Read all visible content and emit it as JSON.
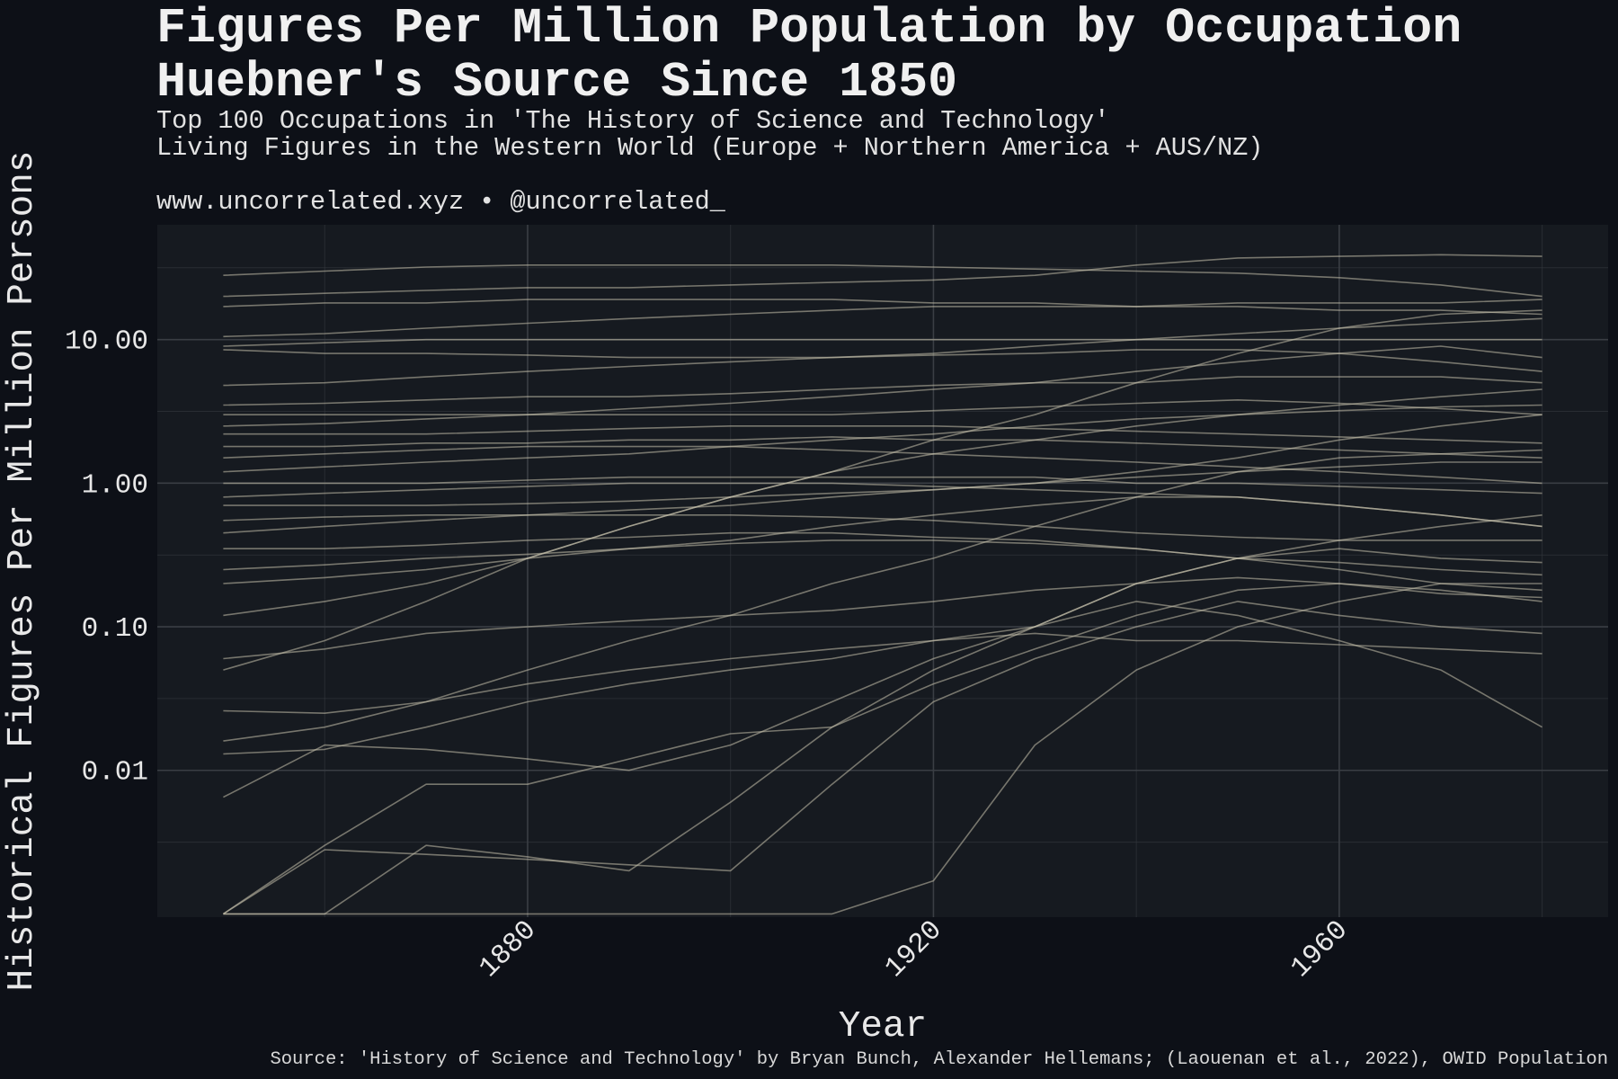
{
  "chart_data": {
    "type": "line",
    "title": [
      "Figures Per Million Population by Occupation",
      "Huebner's Source Since 1850"
    ],
    "subtitle": [
      "Top 100 Occupations in 'The History of Science and Technology'",
      "Living Figures in the Western World (Europe + Northern America + AUS/NZ)"
    ],
    "credit": "www.uncorrelated.xyz • @uncorrelated_",
    "caption": "Source: 'History of Science and Technology' by Bryan Bunch, Alexander Hellemans; (Laouenan et al., 2022), OWID Population",
    "xlabel": "Year",
    "ylabel": "Historical Figures Per Million Persons",
    "x_ticks": [
      "1880",
      "1920",
      "1960"
    ],
    "y_ticks": [
      "10.00",
      "1.00",
      "0.10",
      "0.01"
    ],
    "y_scale": "log10",
    "xlim": [
      1843.5,
      1986.5
    ],
    "ylim": [
      0.00095,
      63
    ],
    "grid": true,
    "legend": "none",
    "x": [
      1850,
      1860,
      1870,
      1880,
      1890,
      1900,
      1910,
      1920,
      1930,
      1940,
      1950,
      1960,
      1970,
      1980
    ],
    "series": [
      {
        "values": [
          28,
          30,
          32,
          33,
          33,
          33,
          33,
          32,
          31,
          30,
          29,
          27,
          24,
          20
        ]
      },
      {
        "values": [
          20,
          21,
          22,
          23,
          23,
          24,
          25,
          26,
          28,
          33,
          37,
          38,
          39,
          38
        ]
      },
      {
        "values": [
          17,
          18,
          18,
          19,
          19,
          19,
          19,
          18,
          18,
          17,
          17,
          16,
          16,
          15
        ]
      },
      {
        "values": [
          10.5,
          11,
          12,
          13,
          14,
          15,
          16,
          17,
          17,
          17,
          18,
          18,
          18,
          19
        ]
      },
      {
        "values": [
          9,
          9.5,
          10,
          10,
          10,
          10,
          10,
          10,
          10,
          10,
          10,
          10,
          10,
          10
        ]
      },
      {
        "values": [
          8.5,
          8,
          8,
          7.8,
          7.5,
          7.5,
          7.5,
          7.8,
          8,
          8.5,
          8.5,
          8,
          7,
          6
        ]
      },
      {
        "values": [
          4.8,
          5,
          5.5,
          6,
          6.5,
          7,
          7.5,
          8,
          9,
          10,
          11,
          12,
          13,
          14
        ]
      },
      {
        "values": [
          3.5,
          3.6,
          3.8,
          4,
          4,
          4.2,
          4.5,
          4.8,
          5,
          5,
          5.5,
          5.5,
          5.5,
          5
        ]
      },
      {
        "values": [
          3,
          3,
          3,
          3,
          3,
          3,
          3,
          3.2,
          3.4,
          3.6,
          3.8,
          3.6,
          3.3,
          3
        ]
      },
      {
        "values": [
          2.5,
          2.6,
          2.8,
          3,
          3.3,
          3.6,
          4,
          4.5,
          5,
          6,
          7,
          8,
          9,
          7.5
        ]
      },
      {
        "values": [
          2.2,
          2.2,
          2.2,
          2.3,
          2.4,
          2.5,
          2.5,
          2.5,
          2.4,
          2.3,
          2.2,
          2.1,
          2,
          1.9
        ]
      },
      {
        "values": [
          1.8,
          1.8,
          1.9,
          1.9,
          2,
          2,
          2.1,
          2,
          2,
          1.9,
          1.8,
          1.7,
          1.6,
          1.5
        ]
      },
      {
        "values": [
          1.5,
          1.6,
          1.7,
          1.8,
          1.8,
          1.8,
          1.7,
          1.6,
          1.5,
          1.4,
          1.3,
          1.2,
          1.1,
          1
        ]
      },
      {
        "values": [
          1.2,
          1.3,
          1.4,
          1.5,
          1.6,
          1.8,
          2,
          2.2,
          2.5,
          2.8,
          3,
          3.2,
          3.4,
          3.5
        ]
      },
      {
        "values": [
          1,
          1,
          1,
          1.05,
          1.1,
          1.1,
          1.1,
          1.1,
          1.1,
          1,
          1,
          0.95,
          0.9,
          0.85
        ]
      },
      {
        "values": [
          0.8,
          0.85,
          0.9,
          0.95,
          1,
          1,
          1,
          0.95,
          0.9,
          0.85,
          0.8,
          0.7,
          0.6,
          0.5
        ]
      },
      {
        "values": [
          0.7,
          0.7,
          0.7,
          0.72,
          0.75,
          0.8,
          0.85,
          0.9,
          1,
          1.1,
          1.2,
          1.3,
          1.4,
          1.4
        ]
      },
      {
        "values": [
          0.55,
          0.58,
          0.6,
          0.6,
          0.6,
          0.6,
          0.58,
          0.55,
          0.5,
          0.45,
          0.42,
          0.4,
          0.4,
          0.4
        ]
      },
      {
        "values": [
          0.45,
          0.5,
          0.55,
          0.6,
          0.65,
          0.7,
          0.8,
          0.9,
          1,
          1.2,
          1.5,
          2,
          2.5,
          3
        ]
      },
      {
        "values": [
          0.35,
          0.35,
          0.37,
          0.4,
          0.42,
          0.45,
          0.45,
          0.42,
          0.4,
          0.35,
          0.3,
          0.28,
          0.25,
          0.23
        ]
      },
      {
        "values": [
          0.25,
          0.27,
          0.3,
          0.32,
          0.35,
          0.38,
          0.4,
          0.4,
          0.38,
          0.35,
          0.3,
          0.25,
          0.2,
          0.18
        ]
      },
      {
        "values": [
          0.2,
          0.22,
          0.25,
          0.3,
          0.35,
          0.4,
          0.5,
          0.6,
          0.7,
          0.8,
          0.8,
          0.7,
          0.6,
          0.5
        ]
      },
      {
        "values": [
          0.12,
          0.15,
          0.2,
          0.3,
          0.5,
          0.8,
          1.2,
          1.6,
          2,
          2.5,
          3,
          3.5,
          4,
          4.5
        ]
      },
      {
        "values": [
          0.06,
          0.07,
          0.09,
          0.1,
          0.11,
          0.12,
          0.13,
          0.15,
          0.18,
          0.2,
          0.22,
          0.2,
          0.17,
          0.16
        ]
      },
      {
        "values": [
          0.05,
          0.08,
          0.15,
          0.3,
          0.5,
          0.8,
          1.2,
          2,
          3,
          5,
          8,
          12,
          15,
          16
        ]
      },
      {
        "values": [
          0.026,
          0.025,
          0.03,
          0.04,
          0.05,
          0.06,
          0.07,
          0.08,
          0.09,
          0.08,
          0.08,
          0.075,
          0.07,
          0.065
        ]
      },
      {
        "values": [
          0.016,
          0.02,
          0.03,
          0.05,
          0.08,
          0.12,
          0.2,
          0.3,
          0.5,
          0.8,
          1.2,
          1.5,
          1.6,
          1.7
        ]
      },
      {
        "values": [
          0.013,
          0.014,
          0.02,
          0.03,
          0.04,
          0.05,
          0.06,
          0.08,
          0.1,
          0.15,
          0.12,
          0.08,
          0.05,
          0.02
        ]
      },
      {
        "values": [
          0.0065,
          0.015,
          0.014,
          0.012,
          0.01,
          0.015,
          0.03,
          0.06,
          0.1,
          0.2,
          0.3,
          0.4,
          0.5,
          0.6
        ]
      },
      {
        "values": [
          0.001,
          0.003,
          0.008,
          0.008,
          0.012,
          0.018,
          0.02,
          0.04,
          0.07,
          0.12,
          0.18,
          0.2,
          0.18,
          0.15
        ]
      },
      {
        "values": [
          0.001,
          0.001,
          0.003,
          0.0025,
          0.002,
          0.006,
          0.02,
          0.05,
          0.1,
          0.2,
          0.3,
          0.35,
          0.3,
          0.28
        ]
      },
      {
        "values": [
          0.001,
          0.001,
          0.001,
          0.001,
          0.001,
          0.001,
          0.001,
          0.0017,
          0.015,
          0.05,
          0.1,
          0.15,
          0.2,
          0.2
        ]
      },
      {
        "values": [
          0.001,
          0.0028,
          0.0026,
          0.0024,
          0.0022,
          0.002,
          0.008,
          0.03,
          0.06,
          0.1,
          0.15,
          0.12,
          0.1,
          0.09
        ]
      }
    ],
    "colors": {
      "background": "#0d1017",
      "panel": "#161a20",
      "line": "#c8c3ad",
      "grid": "#3a3e44"
    }
  }
}
